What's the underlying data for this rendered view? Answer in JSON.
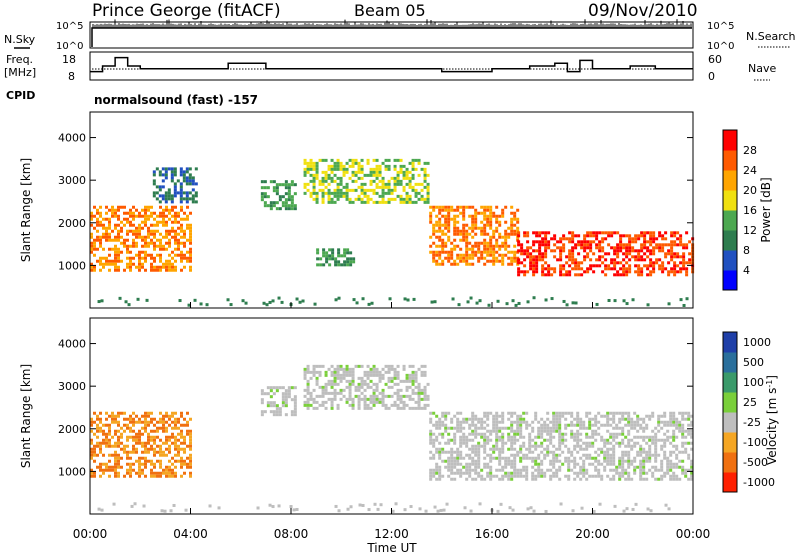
{
  "header": {
    "station": "Prince George (fitACF)",
    "beam": "Beam 05",
    "date": "09/Nov/2010"
  },
  "noise_panel": {
    "left_label": "N.Sky",
    "right_label": "N.Search",
    "left_ticks": [
      "10^5",
      "10^0"
    ],
    "right_ticks": [
      "10^5",
      "10^0"
    ]
  },
  "freq_panel": {
    "left_label_line1": "Freq.",
    "left_label_line2": "[MHz]",
    "left_ticks": [
      "18",
      "8"
    ],
    "right_label": "Nave",
    "right_ticks": [
      "60",
      "0"
    ],
    "cpid_label": "CPID",
    "cpid_text": "normalsound (fast) -157"
  },
  "colors": {
    "power_scale": [
      "#0000ff",
      "#2050c0",
      "#2e7d4f",
      "#4ca850",
      "#f0e010",
      "#ffa500",
      "#ff5a00",
      "#ff0000"
    ],
    "velocity_scale": [
      "#1f3fa8",
      "#2a6f9c",
      "#3a9a6a",
      "#7acf3a",
      "#bebebe",
      "#f5a623",
      "#f07010",
      "#ff2000"
    ]
  },
  "chart_data": [
    {
      "type": "line",
      "title": "N.Sky / N.Search",
      "x": [
        "00:00",
        "04:00",
        "08:00",
        "12:00",
        "16:00",
        "20:00",
        "00:00"
      ],
      "yscale": "log",
      "ylim": [
        "10^0",
        "10^5"
      ]
    },
    {
      "type": "line",
      "x": [
        0,
        0.5,
        1,
        1.5,
        2,
        4,
        5.5,
        7,
        8.5,
        10,
        12,
        14,
        16,
        17.5,
        18.5,
        19,
        19.5,
        20,
        21.5,
        22.5,
        24
      ],
      "series": [
        {
          "name": "Freq. [MHz]",
          "values": [
            11,
            13,
            16,
            13,
            12,
            12,
            14,
            12,
            12,
            12,
            12,
            11,
            12,
            13,
            14,
            11,
            15,
            12,
            13,
            12,
            12
          ]
        }
      ],
      "ylim": [
        8,
        18
      ],
      "right_axis": {
        "name": "Nave",
        "ylim": [
          0,
          60
        ]
      }
    },
    {
      "type": "heatmap",
      "ylabel": "Slant Range [km]",
      "xlabel": "Time UT",
      "x_ticks": [
        "00:00",
        "04:00",
        "08:00",
        "12:00",
        "16:00",
        "20:00",
        "00:00"
      ],
      "y_ticks": [
        "1000",
        "2000",
        "3000",
        "4000"
      ],
      "colorbar": {
        "label": "Power [dB]",
        "ticks": [
          "4",
          "8",
          "12",
          "16",
          "20",
          "24",
          "28"
        ]
      },
      "echo_regions_km": [
        {
          "start_h": 0.0,
          "end_h": 4.0,
          "range": [
            900,
            2400
          ],
          "value": 24
        },
        {
          "start_h": 2.5,
          "end_h": 4.2,
          "range": [
            2500,
            3300
          ],
          "value": 8
        },
        {
          "start_h": 6.8,
          "end_h": 8.2,
          "range": [
            2300,
            3000
          ],
          "value": 12
        },
        {
          "start_h": 8.5,
          "end_h": 13.5,
          "range": [
            2500,
            3500
          ],
          "value": 16
        },
        {
          "start_h": 9.0,
          "end_h": 10.5,
          "range": [
            1000,
            1400
          ],
          "value": 12
        },
        {
          "start_h": 13.5,
          "end_h": 17.0,
          "range": [
            1000,
            2400
          ],
          "value": 24
        },
        {
          "start_h": 17.0,
          "end_h": 24.0,
          "range": [
            800,
            1800
          ],
          "value": 28
        }
      ]
    },
    {
      "type": "heatmap",
      "ylabel": "Slant Range [km]",
      "xlabel": "Time UT",
      "x_ticks": [
        "00:00",
        "04:00",
        "08:00",
        "12:00",
        "16:00",
        "20:00",
        "00:00"
      ],
      "y_ticks": [
        "1000",
        "2000",
        "3000",
        "4000"
      ],
      "colorbar": {
        "label": "Velocity [m s^-1]",
        "ticks": [
          "1000",
          "500",
          "100",
          "25",
          "-25",
          "-100",
          "-500",
          "-1000"
        ]
      },
      "echo_regions_km": [
        {
          "start_h": 0.0,
          "end_h": 4.0,
          "range": [
            900,
            2400
          ],
          "value": -200
        },
        {
          "start_h": 6.8,
          "end_h": 8.2,
          "range": [
            2300,
            3000
          ],
          "value": 0
        },
        {
          "start_h": 8.5,
          "end_h": 13.5,
          "range": [
            2500,
            3500
          ],
          "value": 0
        },
        {
          "start_h": 13.5,
          "end_h": 24.0,
          "range": [
            800,
            2400
          ],
          "value": 0
        }
      ]
    }
  ]
}
